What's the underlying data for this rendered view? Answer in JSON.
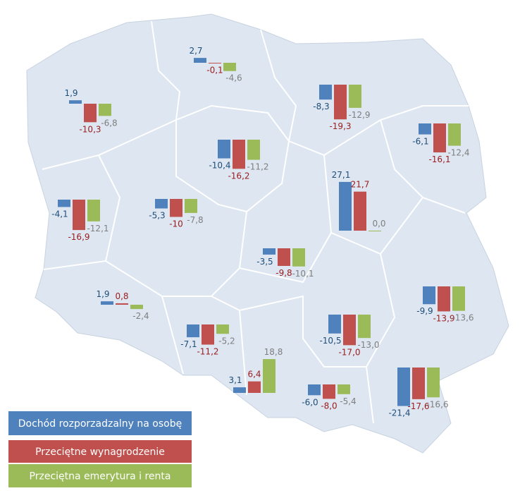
{
  "legend": [
    {
      "name": "Dochód rozporzadzalny na osobę",
      "color": "#4f81bd"
    },
    {
      "name": "Przeciętne  wynagrodzenie",
      "color": "#c0504d"
    },
    {
      "name": "Przeciętna  emerytura i renta",
      "color": "#9bbb59"
    }
  ],
  "regions": [
    {
      "values": [
        1.9,
        -10.3,
        -6.8
      ],
      "value_labels": [
        "1,9",
        "-10,3",
        "-6,8"
      ]
    },
    {
      "values": [
        2.7,
        -0.1,
        -4.6
      ],
      "value_labels": [
        "2,7",
        "-0,1",
        "-4,6"
      ]
    },
    {
      "values": [
        -8.3,
        -19.3,
        -12.9
      ],
      "value_labels": [
        "-8,3",
        "-19,3",
        "-12,9"
      ]
    },
    {
      "values": [
        -6.1,
        -16.1,
        -12.4
      ],
      "value_labels": [
        "-6,1",
        "-16,1",
        "-12,4"
      ]
    },
    {
      "values": [
        -10.4,
        -16.2,
        -11.2
      ],
      "value_labels": [
        "-10,4",
        "-16,2",
        "-11,2"
      ]
    },
    {
      "values": [
        -4.1,
        -16.9,
        -12.1
      ],
      "value_labels": [
        "-4,1",
        "-16,9",
        "-12,1"
      ]
    },
    {
      "values": [
        -5.3,
        -10,
        -7.8
      ],
      "value_labels": [
        "-5,3",
        "-10",
        "-7,8"
      ]
    },
    {
      "values": [
        27.1,
        21.7,
        0.0
      ],
      "value_labels": [
        "27,1",
        "21,7",
        "0,0"
      ]
    },
    {
      "values": [
        -3.5,
        -9.8,
        -10.1
      ],
      "value_labels": [
        "-3,5",
        "-9,8",
        "-10,1"
      ]
    },
    {
      "values": [
        1.9,
        0.8,
        -2.4
      ],
      "value_labels": [
        "1,9",
        "0,8",
        "-2,4"
      ]
    },
    {
      "values": [
        -7.1,
        -11.2,
        -5.2
      ],
      "value_labels": [
        "-7,1",
        "-11,2",
        "-5,2"
      ]
    },
    {
      "values": [
        3.1,
        6.4,
        18.8
      ],
      "value_labels": [
        "3,1",
        "6,4",
        "18,8"
      ]
    },
    {
      "values": [
        -10.5,
        -17.0,
        -13.0
      ],
      "value_labels": [
        "-10,5",
        "-17,0",
        "-13,0"
      ]
    },
    {
      "values": [
        -9.9,
        -13.9,
        -13.6
      ],
      "value_labels": [
        "-9,9",
        "-13,9",
        "-13,6"
      ]
    },
    {
      "values": [
        -6.0,
        -8.0,
        -5.4
      ],
      "value_labels": [
        "-6,0",
        "-8,0",
        "-5,4"
      ]
    },
    {
      "values": [
        -21.4,
        -17.6,
        -16.6
      ],
      "value_labels": [
        "-21,4",
        "-17,6",
        "-16,6"
      ]
    }
  ]
}
